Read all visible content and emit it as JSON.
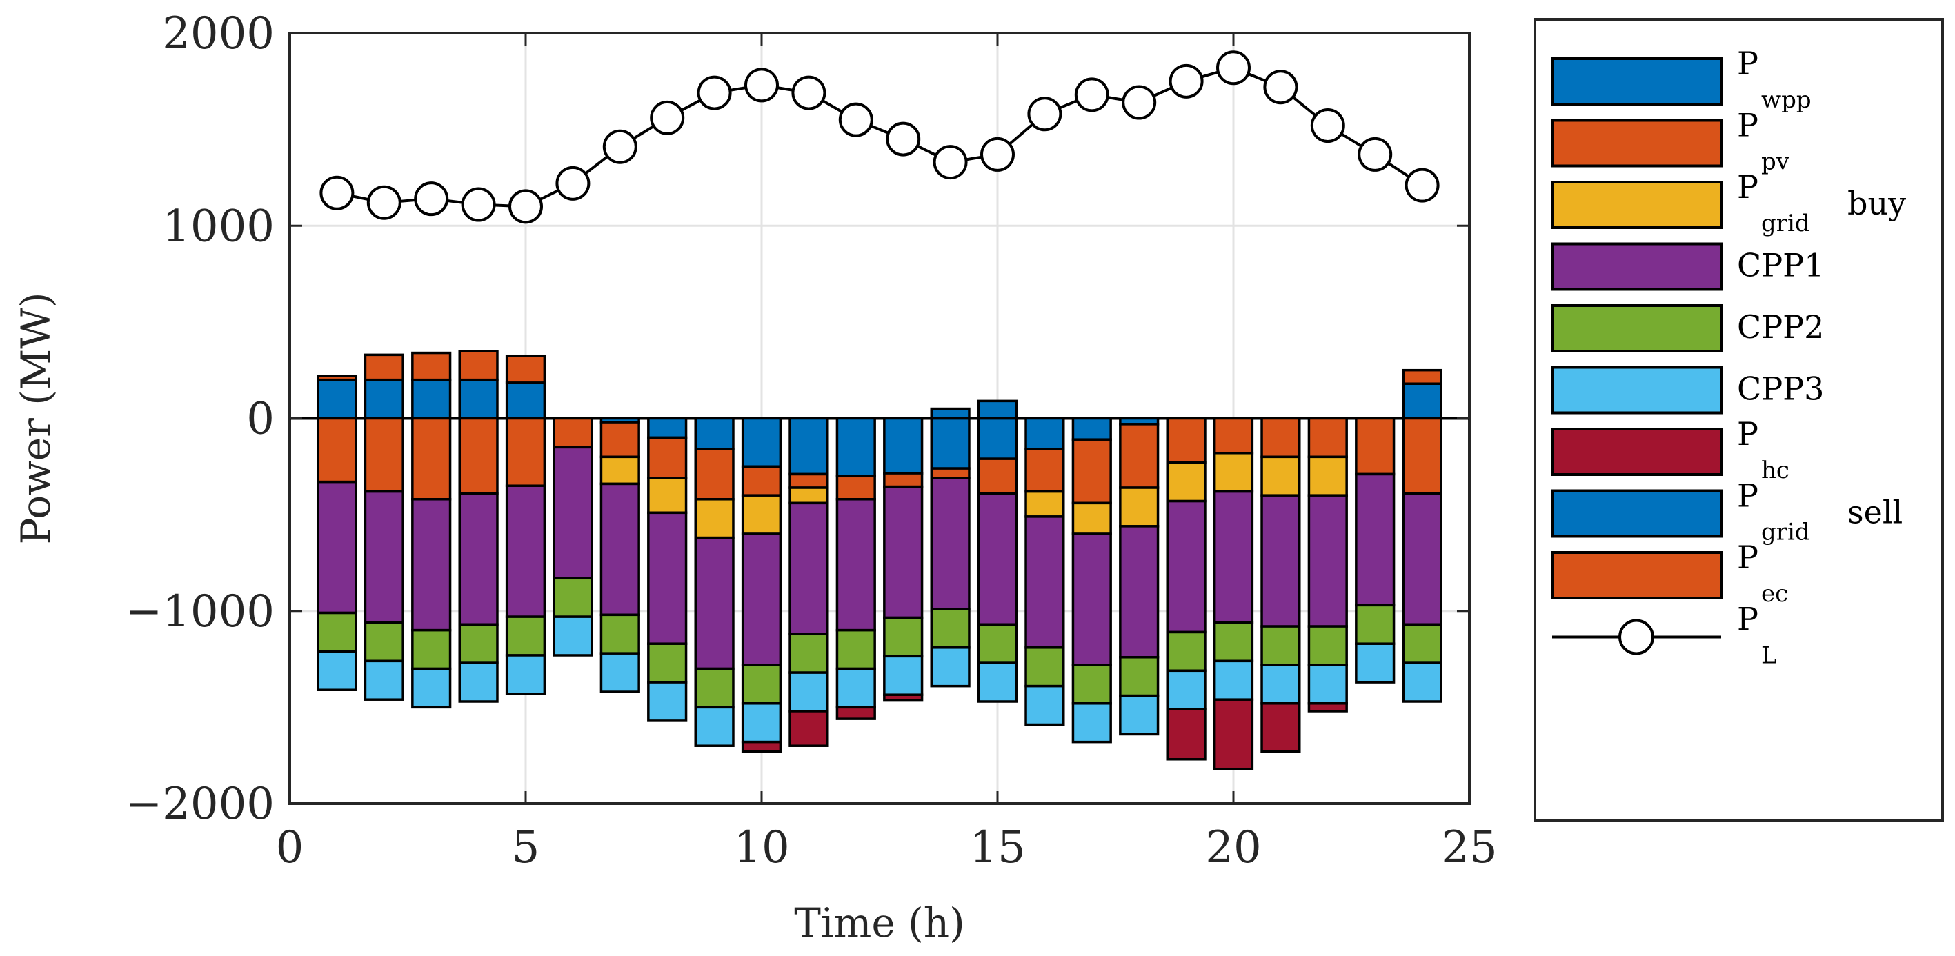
{
  "chart_data": {
    "type": "bar",
    "stacked": true,
    "xlabel": "Time (h)",
    "ylabel": "Power (MW)",
    "xlim": [
      0,
      25
    ],
    "ylim": [
      -2000,
      2000
    ],
    "xticks": [
      0,
      5,
      10,
      15,
      20,
      25
    ],
    "yticks": [
      2000,
      1000,
      0,
      -1000,
      -2000
    ],
    "ytick_labels": [
      "2000",
      "1000",
      "0",
      "−1000",
      "−2000"
    ],
    "grid": true,
    "legend_position": "right-outside",
    "hours": [
      1,
      2,
      3,
      4,
      5,
      6,
      7,
      8,
      9,
      10,
      11,
      12,
      13,
      14,
      15,
      16,
      17,
      18,
      19,
      20,
      21,
      22,
      23,
      24
    ],
    "series": [
      {
        "name": "P_wpp",
        "main": "P",
        "sub": "wpp",
        "suffix": "",
        "color": "#0072BD",
        "values": [
          200,
          200,
          200,
          200,
          185,
          0,
          -20,
          -100,
          -160,
          -250,
          -290,
          -300,
          -285,
          -260,
          -210,
          -160,
          -110,
          -30,
          0,
          0,
          0,
          0,
          0,
          180
        ]
      },
      {
        "name": "P_pv",
        "main": "P",
        "sub": "pv",
        "suffix": "",
        "color": "#D95319",
        "values": [
          -330,
          -380,
          -420,
          -390,
          -350,
          -150,
          -180,
          -210,
          -260,
          -150,
          -70,
          -120,
          -70,
          -50,
          -180,
          -220,
          -330,
          -330,
          -230,
          -180,
          -200,
          -200,
          -290,
          -390
        ]
      },
      {
        "name": "P_grid buy",
        "main": "P",
        "sub": "grid",
        "suffix": "buy",
        "color": "#EDB120",
        "values": [
          0,
          0,
          0,
          0,
          0,
          0,
          -140,
          -180,
          -200,
          -200,
          -80,
          0,
          0,
          0,
          0,
          -130,
          -160,
          -200,
          -200,
          -200,
          -200,
          -200,
          0,
          0
        ]
      },
      {
        "name": "CPP1",
        "main": "CPP1",
        "sub": "",
        "suffix": "",
        "color": "#7E2F8E",
        "values": [
          -680,
          -680,
          -680,
          -680,
          -680,
          -680,
          -680,
          -680,
          -680,
          -680,
          -680,
          -680,
          -680,
          -680,
          -680,
          -680,
          -680,
          -680,
          -680,
          -680,
          -680,
          -680,
          -680,
          -680
        ]
      },
      {
        "name": "CPP2",
        "main": "CPP2",
        "sub": "",
        "suffix": "",
        "color": "#77AC30",
        "values": [
          -200,
          -200,
          -200,
          -200,
          -200,
          -200,
          -200,
          -200,
          -200,
          -200,
          -200,
          -200,
          -200,
          -200,
          -200,
          -200,
          -200,
          -200,
          -200,
          -200,
          -200,
          -200,
          -200,
          -200
        ]
      },
      {
        "name": "CPP3",
        "main": "CPP3",
        "sub": "",
        "suffix": "",
        "color": "#4DBEEE",
        "values": [
          -200,
          -200,
          -200,
          -200,
          -200,
          -200,
          -200,
          -200,
          -200,
          -200,
          -200,
          -200,
          -200,
          -200,
          -200,
          -200,
          -200,
          -200,
          -200,
          -200,
          -200,
          -200,
          -200,
          -200
        ]
      },
      {
        "name": "P_hc",
        "main": "P",
        "sub": "hc",
        "suffix": "",
        "color": "#A2142F",
        "values": [
          0,
          0,
          0,
          0,
          0,
          0,
          0,
          0,
          0,
          -50,
          -180,
          -60,
          -30,
          0,
          0,
          0,
          0,
          0,
          -260,
          -360,
          -250,
          -40,
          0,
          0
        ]
      },
      {
        "name": "P_grid sell",
        "main": "P",
        "sub": "grid",
        "suffix": "sell",
        "color": "#0072BD",
        "values": [
          0,
          0,
          0,
          0,
          0,
          0,
          0,
          0,
          0,
          0,
          0,
          0,
          0,
          50,
          90,
          0,
          0,
          0,
          0,
          0,
          0,
          0,
          0,
          0
        ]
      },
      {
        "name": "P_ec",
        "main": "P",
        "sub": "ec",
        "suffix": "",
        "color": "#D95319",
        "values": [
          20,
          130,
          140,
          150,
          140,
          0,
          0,
          0,
          0,
          0,
          0,
          0,
          0,
          0,
          0,
          0,
          0,
          0,
          0,
          0,
          0,
          0,
          0,
          70
        ]
      }
    ],
    "line": {
      "name": "P_L",
      "main": "P",
      "sub": "L",
      "suffix": "",
      "color": "#000000",
      "values": [
        1170,
        1120,
        1140,
        1110,
        1100,
        1220,
        1410,
        1560,
        1690,
        1730,
        1690,
        1550,
        1450,
        1330,
        1370,
        1580,
        1680,
        1640,
        1750,
        1820,
        1720,
        1520,
        1370,
        1210
      ]
    }
  }
}
